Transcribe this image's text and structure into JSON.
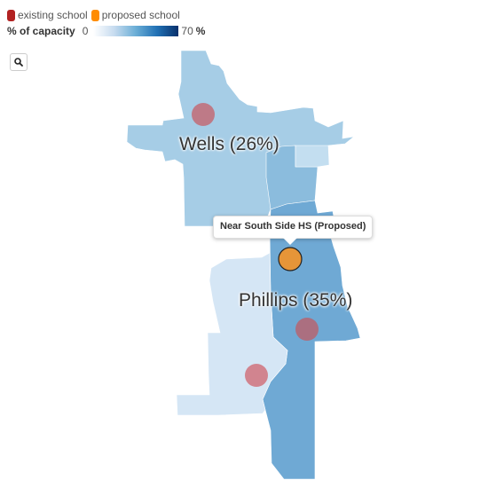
{
  "legend": {
    "existing_label": "existing school",
    "proposed_label": "proposed school",
    "existing_color": "#b22222",
    "proposed_color": "#ff8c00",
    "scale_title": "% of capacity",
    "scale_min": "0",
    "scale_max": "70",
    "scale_unit": "%"
  },
  "controls": {
    "search_icon": "search-icon"
  },
  "districts": [
    {
      "id": "wells",
      "label": "Wells (26%)"
    },
    {
      "id": "phillips",
      "label": "Phillips (35%)"
    }
  ],
  "colors": {
    "wells_light": "#a6cde6",
    "wells_dark": "#8bbcdd",
    "phillips_dark": "#6fa9d4",
    "phillips_light": "#d5e6f5",
    "existing_school": "#c0737f",
    "proposed_school": "#e69538"
  },
  "tooltip": {
    "text": "Near South Side HS (Proposed)"
  }
}
